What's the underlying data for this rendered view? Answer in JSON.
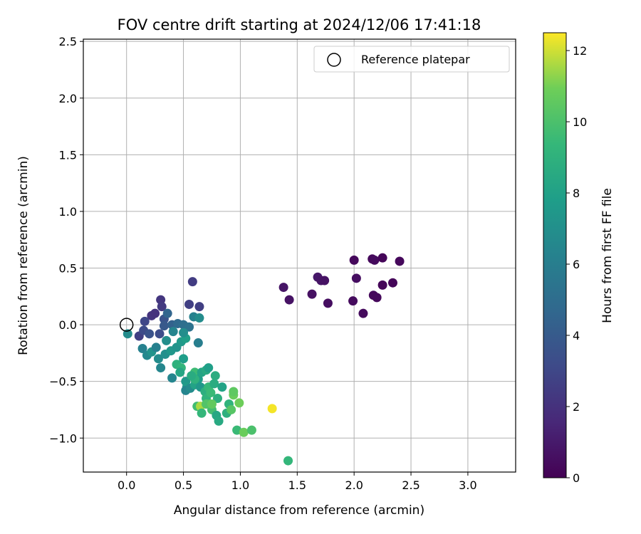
{
  "chart_data": {
    "type": "scatter",
    "title": "FOV centre drift starting at 2024/12/06 17:41:18",
    "xlabel": "Angular distance from reference (arcmin)",
    "ylabel": "Rotation from reference (arcmin)",
    "xlim": [
      -0.38,
      3.42
    ],
    "ylim": [
      -1.3,
      2.52
    ],
    "x_ticks": [
      0.0,
      0.5,
      1.0,
      1.5,
      2.0,
      2.5,
      3.0
    ],
    "y_ticks": [
      -1.0,
      -0.5,
      0.0,
      0.5,
      1.0,
      1.5,
      2.0,
      2.5
    ],
    "x_tick_labels": [
      "0.0",
      "0.5",
      "1.0",
      "1.5",
      "2.0",
      "2.5",
      "3.0"
    ],
    "y_tick_labels": [
      "−1.0",
      "−0.5",
      "0.0",
      "0.5",
      "1.0",
      "1.5",
      "2.0",
      "2.5"
    ],
    "grid": true,
    "legend": {
      "placement": "top-right",
      "entries": [
        {
          "label": "Reference platepar",
          "marker": "open-circle"
        }
      ]
    },
    "reference_point": {
      "x": 0.0,
      "y": 0.0
    },
    "colorbar": {
      "label": "Hours from first FF file",
      "colormap": "viridis",
      "range": [
        0,
        12.5
      ],
      "ticks": [
        0,
        2,
        4,
        6,
        8,
        10,
        12
      ],
      "tick_labels": [
        "0",
        "2",
        "4",
        "6",
        "8",
        "10",
        "12"
      ]
    },
    "series": [
      {
        "points": [
          {
            "x": 2.0,
            "y": 0.57,
            "c": 0.3
          },
          {
            "x": 2.16,
            "y": 0.58,
            "c": 0.3
          },
          {
            "x": 2.18,
            "y": 0.57,
            "c": 0.4
          },
          {
            "x": 2.25,
            "y": 0.59,
            "c": 0.2
          },
          {
            "x": 2.4,
            "y": 0.56,
            "c": 0.3
          },
          {
            "x": 2.02,
            "y": 0.41,
            "c": 0.5
          },
          {
            "x": 1.38,
            "y": 0.33,
            "c": 0.8
          },
          {
            "x": 1.43,
            "y": 0.22,
            "c": 0.7
          },
          {
            "x": 1.68,
            "y": 0.42,
            "c": 0.9
          },
          {
            "x": 1.71,
            "y": 0.39,
            "c": 0.8
          },
          {
            "x": 1.74,
            "y": 0.39,
            "c": 0.7
          },
          {
            "x": 1.63,
            "y": 0.27,
            "c": 0.6
          },
          {
            "x": 1.77,
            "y": 0.19,
            "c": 0.5
          },
          {
            "x": 1.99,
            "y": 0.21,
            "c": 0.4
          },
          {
            "x": 2.08,
            "y": 0.1,
            "c": 0.4
          },
          {
            "x": 2.17,
            "y": 0.26,
            "c": 0.3
          },
          {
            "x": 2.2,
            "y": 0.24,
            "c": 0.3
          },
          {
            "x": 2.25,
            "y": 0.35,
            "c": 0.2
          },
          {
            "x": 2.34,
            "y": 0.37,
            "c": 0.2
          },
          {
            "x": 0.58,
            "y": 0.38,
            "c": 2.5
          },
          {
            "x": 0.55,
            "y": 0.18,
            "c": 2.6
          },
          {
            "x": 0.64,
            "y": 0.16,
            "c": 2.6
          },
          {
            "x": 0.3,
            "y": 0.22,
            "c": 2.2
          },
          {
            "x": 0.31,
            "y": 0.16,
            "c": 2.4
          },
          {
            "x": 0.22,
            "y": 0.08,
            "c": 2.1
          },
          {
            "x": 0.25,
            "y": 0.1,
            "c": 2.0
          },
          {
            "x": 0.16,
            "y": 0.03,
            "c": 3.0
          },
          {
            "x": 0.11,
            "y": -0.1,
            "c": 2.6
          },
          {
            "x": 0.15,
            "y": -0.05,
            "c": 3.2
          },
          {
            "x": 0.2,
            "y": -0.08,
            "c": 3.6
          },
          {
            "x": 0.33,
            "y": 0.05,
            "c": 3.6
          },
          {
            "x": 0.36,
            "y": 0.1,
            "c": 4.6
          },
          {
            "x": 0.29,
            "y": -0.08,
            "c": 3.3
          },
          {
            "x": 0.33,
            "y": -0.01,
            "c": 3.9
          },
          {
            "x": 0.4,
            "y": 0.0,
            "c": 4.4
          },
          {
            "x": 0.45,
            "y": 0.01,
            "c": 4.8
          },
          {
            "x": 0.5,
            "y": 0.0,
            "c": 5.1
          },
          {
            "x": 0.55,
            "y": -0.02,
            "c": 5.3
          },
          {
            "x": 0.59,
            "y": 0.07,
            "c": 6.2
          },
          {
            "x": 0.64,
            "y": 0.06,
            "c": 6.8
          },
          {
            "x": 0.63,
            "y": -0.16,
            "c": 6.0
          },
          {
            "x": 0.01,
            "y": -0.08,
            "c": 6.8
          },
          {
            "x": 0.14,
            "y": -0.21,
            "c": 6.2
          },
          {
            "x": 0.18,
            "y": -0.27,
            "c": 6.6
          },
          {
            "x": 0.22,
            "y": -0.24,
            "c": 7.2
          },
          {
            "x": 0.28,
            "y": -0.3,
            "c": 6.8
          },
          {
            "x": 0.3,
            "y": -0.38,
            "c": 6.5
          },
          {
            "x": 0.34,
            "y": -0.26,
            "c": 7.0
          },
          {
            "x": 0.39,
            "y": -0.23,
            "c": 7.4
          },
          {
            "x": 0.4,
            "y": -0.47,
            "c": 6.4
          },
          {
            "x": 0.44,
            "y": -0.2,
            "c": 7.2
          },
          {
            "x": 0.48,
            "y": -0.15,
            "c": 7.6
          },
          {
            "x": 0.5,
            "y": -0.3,
            "c": 7.8
          },
          {
            "x": 0.52,
            "y": -0.12,
            "c": 7.9
          },
          {
            "x": 0.35,
            "y": -0.14,
            "c": 6.9
          },
          {
            "x": 0.41,
            "y": -0.06,
            "c": 6.4
          },
          {
            "x": 0.5,
            "y": -0.07,
            "c": 6.9
          },
          {
            "x": 0.26,
            "y": -0.2,
            "c": 6.1
          },
          {
            "x": 0.44,
            "y": -0.35,
            "c": 9.0
          },
          {
            "x": 0.48,
            "y": -0.38,
            "c": 9.2
          },
          {
            "x": 0.47,
            "y": -0.42,
            "c": 8.3
          },
          {
            "x": 0.52,
            "y": -0.5,
            "c": 7.5
          },
          {
            "x": 0.53,
            "y": -0.55,
            "c": 7.7
          },
          {
            "x": 0.52,
            "y": -0.58,
            "c": 6.4
          },
          {
            "x": 0.56,
            "y": -0.56,
            "c": 6.8
          },
          {
            "x": 0.6,
            "y": -0.42,
            "c": 9.6
          },
          {
            "x": 0.6,
            "y": -0.53,
            "c": 8.1
          },
          {
            "x": 0.63,
            "y": -0.48,
            "c": 7.8
          },
          {
            "x": 0.65,
            "y": -0.55,
            "c": 7.4
          },
          {
            "x": 0.66,
            "y": -0.42,
            "c": 8.2
          },
          {
            "x": 0.7,
            "y": -0.4,
            "c": 8.5
          },
          {
            "x": 0.72,
            "y": -0.38,
            "c": 7.9
          },
          {
            "x": 0.69,
            "y": -0.59,
            "c": 8.8
          },
          {
            "x": 0.7,
            "y": -0.65,
            "c": 9.1
          },
          {
            "x": 0.72,
            "y": -0.55,
            "c": 9.4
          },
          {
            "x": 0.74,
            "y": -0.6,
            "c": 9.5
          },
          {
            "x": 0.73,
            "y": -0.7,
            "c": 9.9
          },
          {
            "x": 0.75,
            "y": -0.75,
            "c": 9.8
          },
          {
            "x": 0.77,
            "y": -0.52,
            "c": 8.6
          },
          {
            "x": 0.78,
            "y": -0.45,
            "c": 8.7
          },
          {
            "x": 0.79,
            "y": -0.8,
            "c": 8.4
          },
          {
            "x": 0.8,
            "y": -0.65,
            "c": 8.9
          },
          {
            "x": 0.81,
            "y": -0.85,
            "c": 8.5
          },
          {
            "x": 0.84,
            "y": -0.55,
            "c": 8.1
          },
          {
            "x": 0.88,
            "y": -0.78,
            "c": 8.9
          },
          {
            "x": 0.9,
            "y": -0.7,
            "c": 9.1
          },
          {
            "x": 0.92,
            "y": -0.75,
            "c": 10.3
          },
          {
            "x": 0.94,
            "y": -0.62,
            "c": 10.8
          },
          {
            "x": 0.94,
            "y": -0.59,
            "c": 10.5
          },
          {
            "x": 0.99,
            "y": -0.69,
            "c": 10.9
          },
          {
            "x": 0.97,
            "y": -0.93,
            "c": 9.5
          },
          {
            "x": 1.03,
            "y": -0.95,
            "c": 10.8
          },
          {
            "x": 1.1,
            "y": -0.93,
            "c": 10.0
          },
          {
            "x": 0.62,
            "y": -0.72,
            "c": 9.7
          },
          {
            "x": 0.65,
            "y": -0.72,
            "c": 11.6
          },
          {
            "x": 0.66,
            "y": -0.78,
            "c": 9.3
          },
          {
            "x": 0.7,
            "y": -0.7,
            "c": 10.2
          },
          {
            "x": 0.75,
            "y": -0.7,
            "c": 10.6
          },
          {
            "x": 0.6,
            "y": -0.48,
            "c": 9.0
          },
          {
            "x": 0.57,
            "y": -0.45,
            "c": 8.6
          },
          {
            "x": 1.28,
            "y": -0.74,
            "c": 12.4
          },
          {
            "x": 1.42,
            "y": -1.2,
            "c": 9.3
          }
        ]
      }
    ]
  }
}
